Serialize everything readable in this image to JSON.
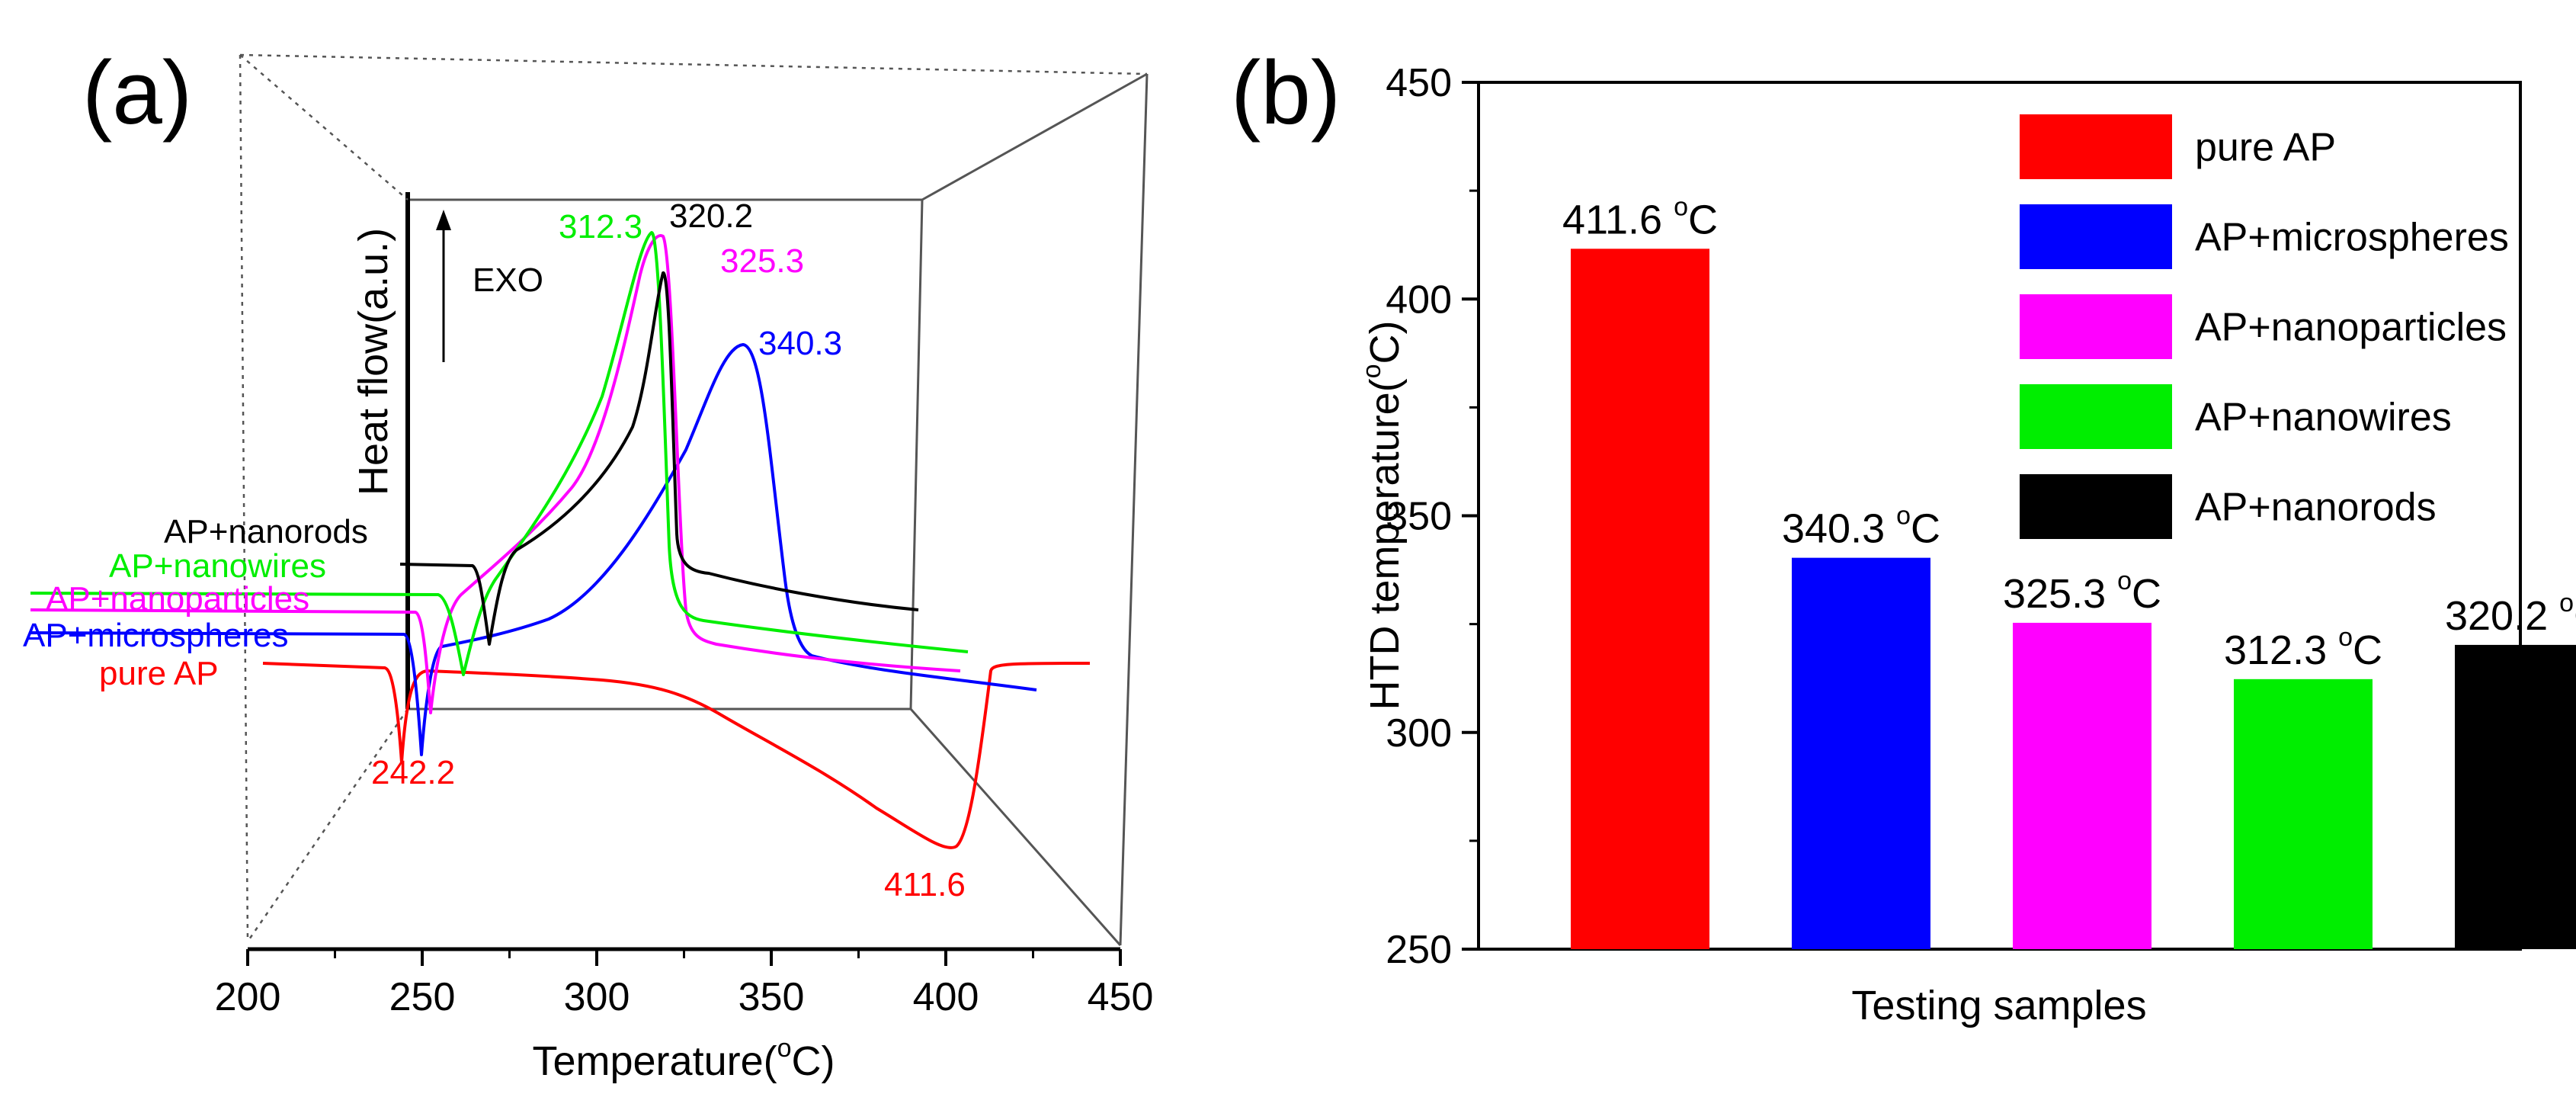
{
  "colors": {
    "red": "#ff0000",
    "blue": "#0000ff",
    "magenta": "#ff00ff",
    "green": "#00ee00",
    "black": "#000000"
  },
  "chart_data": [
    {
      "panel": "(a)",
      "type": "line",
      "title": "",
      "xlabel_main": "Temperature(",
      "xlabel_sup": "o",
      "xlabel_end": "C)",
      "ylabel": "Heat flow(a.u.)",
      "xlim": [
        200,
        450
      ],
      "xticks": [
        "200",
        "250",
        "300",
        "350",
        "400",
        "450"
      ],
      "exo_label": "EXO",
      "series": [
        {
          "name": "pure AP",
          "color": "red",
          "points": [
            [
              210,
              0
            ],
            [
              235,
              0
            ],
            [
              242.2,
              -1
            ],
            [
              248,
              0
            ],
            [
              300,
              -0.3
            ],
            [
              340,
              -1.8
            ],
            [
              380,
              -4.3
            ],
            [
              411.6,
              -4.4
            ],
            [
              425,
              0
            ],
            [
              445,
              0
            ]
          ]
        },
        {
          "name": "AP+microspheres",
          "color": "blue",
          "points": [
            [
              210,
              0
            ],
            [
              245,
              0
            ],
            [
              252,
              -1
            ],
            [
              258,
              0
            ],
            [
              290,
              0.3
            ],
            [
              325,
              3
            ],
            [
              340.3,
              5
            ],
            [
              350,
              1.5
            ],
            [
              375,
              -0.4
            ],
            [
              430,
              -0.8
            ]
          ]
        },
        {
          "name": "AP+nanoparticles",
          "color": "magenta",
          "points": [
            [
              210,
              0
            ],
            [
              250,
              0
            ],
            [
              256,
              -1
            ],
            [
              262,
              0
            ],
            [
              290,
              1
            ],
            [
              315,
              4
            ],
            [
              325.3,
              5.6
            ],
            [
              332,
              1.2
            ],
            [
              350,
              -0.3
            ],
            [
              415,
              -0.9
            ]
          ]
        },
        {
          "name": "AP+nanowires",
          "color": "green",
          "points": [
            [
              210,
              0
            ],
            [
              258,
              0
            ],
            [
              264,
              -1.4
            ],
            [
              272,
              0
            ],
            [
              290,
              1.5
            ],
            [
              305,
              4
            ],
            [
              312.3,
              6.2
            ],
            [
              318,
              1.2
            ],
            [
              340,
              0
            ],
            [
              415,
              -0.6
            ]
          ]
        },
        {
          "name": "AP+nanorods",
          "color": "black",
          "points": [
            [
              210,
              0
            ],
            [
              262,
              0
            ],
            [
              268,
              -1.5
            ],
            [
              276,
              0
            ],
            [
              300,
              2
            ],
            [
              315,
              5
            ],
            [
              320.2,
              6.2
            ],
            [
              326,
              1
            ],
            [
              345,
              0.2
            ],
            [
              395,
              -0.6
            ]
          ]
        }
      ],
      "annotations": [
        {
          "text": "242.2",
          "color": "red"
        },
        {
          "text": "411.6",
          "color": "red"
        },
        {
          "text": "340.3",
          "color": "blue"
        },
        {
          "text": "325.3",
          "color": "magenta"
        },
        {
          "text": "312.3",
          "color": "green"
        },
        {
          "text": "320.2",
          "color": "black"
        }
      ]
    },
    {
      "panel": "(b)",
      "type": "bar",
      "title": "",
      "xlabel": "Testing samples",
      "ylabel_main": "HTD temperature(",
      "ylabel_sup": "o",
      "ylabel_end": "C)",
      "ylim": [
        250,
        450
      ],
      "yticks": [
        250,
        300,
        350,
        400,
        450
      ],
      "categories": [
        "pure AP",
        "AP+microspheres",
        "AP+nanoparticles",
        "AP+nanowires",
        "AP+nanorods"
      ],
      "values": [
        411.6,
        340.3,
        325.3,
        312.3,
        320.2
      ],
      "value_labels": [
        "411.6",
        "340.3",
        "325.3",
        "312.3",
        "320.2"
      ],
      "unit_sup": "o",
      "unit_end": "C",
      "colors": [
        "#ff0000",
        "#0000ff",
        "#ff00ff",
        "#00ee00",
        "#000000"
      ],
      "legend": [
        "pure AP",
        "AP+microspheres",
        "AP+nanoparticles",
        "AP+nanowires",
        "AP+nanorods"
      ],
      "legend_position": "top-right"
    }
  ]
}
